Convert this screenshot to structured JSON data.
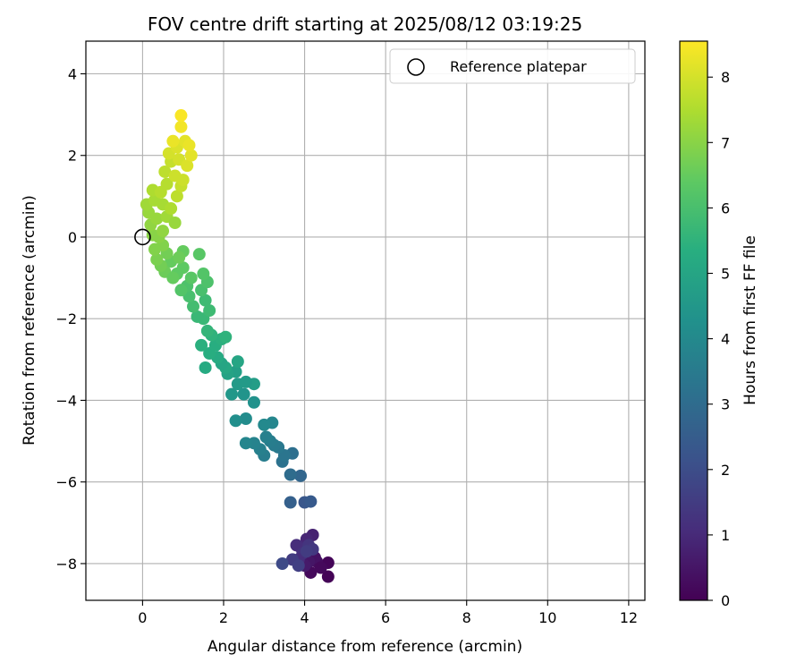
{
  "chart_data": {
    "type": "scatter",
    "title": "FOV centre drift starting at 2025/08/12 03:19:25",
    "xlabel": "Angular distance from reference (arcmin)",
    "ylabel": "Rotation from reference (arcmin)",
    "xlim": [
      -1.4,
      12.4
    ],
    "ylim": [
      -8.9,
      4.8
    ],
    "xticks": [
      0,
      2,
      4,
      6,
      8,
      10,
      12
    ],
    "yticks": [
      -8,
      -6,
      -4,
      -2,
      0,
      2,
      4
    ],
    "grid": true,
    "colormap": "viridis",
    "colorbar": {
      "label": "Hours from first FF file",
      "range": [
        0,
        8.55
      ],
      "ticks": [
        0,
        1,
        2,
        3,
        4,
        5,
        6,
        7,
        8
      ]
    },
    "legend": {
      "location": "top-right",
      "entries": [
        {
          "label": "Reference platepar",
          "marker": "open-circle"
        }
      ]
    },
    "reference": {
      "x": 0,
      "y": 0
    },
    "series": [
      {
        "columns": [
          "x",
          "y",
          "hours"
        ],
        "points": [
          [
            4.58,
            -8.32,
            0.05
          ],
          [
            4.58,
            -7.98,
            0.1
          ],
          [
            4.15,
            -8.22,
            0.2
          ],
          [
            4.3,
            -7.95,
            0.3
          ],
          [
            4.25,
            -7.85,
            0.4
          ],
          [
            4.1,
            -7.95,
            0.5
          ],
          [
            4.0,
            -8.05,
            0.6
          ],
          [
            4.4,
            -8.1,
            0.2
          ],
          [
            4.2,
            -7.3,
            0.8
          ],
          [
            4.05,
            -7.4,
            0.9
          ],
          [
            3.9,
            -7.6,
            1.0
          ],
          [
            3.8,
            -7.55,
            1.1
          ],
          [
            3.95,
            -7.75,
            1.2
          ],
          [
            4.1,
            -7.55,
            1.3
          ],
          [
            3.85,
            -7.9,
            1.1
          ],
          [
            4.2,
            -7.65,
            1.4
          ],
          [
            3.7,
            -7.9,
            1.5
          ],
          [
            3.45,
            -8.0,
            1.9
          ],
          [
            3.85,
            -8.05,
            1.6
          ],
          [
            4.05,
            -7.7,
            1.5
          ],
          [
            4.0,
            -6.5,
            2.3
          ],
          [
            4.15,
            -6.48,
            2.4
          ],
          [
            3.65,
            -6.5,
            2.6
          ],
          [
            3.9,
            -5.85,
            2.8
          ],
          [
            3.65,
            -5.82,
            3.0
          ],
          [
            3.7,
            -5.3,
            3.1
          ],
          [
            3.45,
            -5.5,
            3.2
          ],
          [
            3.5,
            -5.35,
            3.3
          ],
          [
            3.35,
            -5.15,
            3.4
          ],
          [
            3.25,
            -5.1,
            3.5
          ],
          [
            3.15,
            -5.0,
            3.6
          ],
          [
            3.05,
            -4.9,
            3.7
          ],
          [
            3.0,
            -5.35,
            3.6
          ],
          [
            2.9,
            -5.2,
            3.7
          ],
          [
            2.75,
            -5.05,
            3.8
          ],
          [
            2.55,
            -5.05,
            3.9
          ],
          [
            3.2,
            -4.55,
            3.9
          ],
          [
            3.0,
            -4.6,
            4.0
          ],
          [
            2.55,
            -4.45,
            4.1
          ],
          [
            2.3,
            -4.5,
            4.2
          ],
          [
            2.75,
            -4.05,
            4.3
          ],
          [
            2.5,
            -3.85,
            4.4
          ],
          [
            2.2,
            -3.85,
            4.5
          ],
          [
            2.35,
            -3.6,
            4.6
          ],
          [
            2.75,
            -3.6,
            4.7
          ],
          [
            2.55,
            -3.55,
            4.6
          ],
          [
            2.3,
            -3.3,
            4.8
          ],
          [
            2.1,
            -3.35,
            4.9
          ],
          [
            2.35,
            -3.05,
            5.0
          ],
          [
            2.05,
            -3.2,
            5.1
          ],
          [
            1.95,
            -3.1,
            5.0
          ],
          [
            1.85,
            -2.95,
            5.2
          ],
          [
            1.65,
            -2.85,
            5.3
          ],
          [
            1.55,
            -3.2,
            5.2
          ],
          [
            1.8,
            -2.65,
            5.3
          ],
          [
            1.95,
            -2.5,
            5.4
          ],
          [
            2.05,
            -2.45,
            5.5
          ],
          [
            1.7,
            -2.4,
            5.5
          ],
          [
            1.45,
            -2.65,
            5.4
          ],
          [
            1.6,
            -2.3,
            5.6
          ],
          [
            1.5,
            -2.0,
            5.7
          ],
          [
            1.65,
            -1.8,
            5.8
          ],
          [
            1.35,
            -1.95,
            5.7
          ],
          [
            1.55,
            -1.55,
            5.8
          ],
          [
            1.25,
            -1.7,
            5.9
          ],
          [
            1.15,
            -1.45,
            6.0
          ],
          [
            1.45,
            -1.3,
            6.0
          ],
          [
            1.6,
            -1.1,
            6.1
          ],
          [
            1.5,
            -0.9,
            6.2
          ],
          [
            1.1,
            -1.2,
            6.1
          ],
          [
            0.95,
            -1.3,
            6.2
          ],
          [
            1.2,
            -1.0,
            6.3
          ],
          [
            1.4,
            -0.42,
            6.3
          ],
          [
            1.0,
            -0.75,
            6.4
          ],
          [
            0.85,
            -0.9,
            6.4
          ],
          [
            1.0,
            -0.35,
            6.5
          ],
          [
            0.7,
            -0.6,
            6.5
          ],
          [
            0.55,
            -0.85,
            6.6
          ],
          [
            0.75,
            -1.0,
            6.5
          ],
          [
            0.6,
            -0.4,
            6.7
          ],
          [
            0.9,
            -0.5,
            6.6
          ],
          [
            0.45,
            -0.7,
            6.7
          ],
          [
            0.35,
            -0.55,
            6.8
          ],
          [
            0.5,
            -0.2,
            6.9
          ],
          [
            0.3,
            -0.3,
            6.9
          ],
          [
            0.4,
            0.0,
            7.0
          ],
          [
            0.25,
            0.05,
            7.0
          ],
          [
            0.5,
            0.15,
            7.1
          ],
          [
            0.2,
            0.3,
            7.1
          ],
          [
            0.35,
            0.45,
            7.2
          ],
          [
            0.15,
            0.6,
            7.2
          ],
          [
            0.6,
            0.5,
            7.3
          ],
          [
            0.8,
            0.35,
            7.2
          ],
          [
            0.1,
            0.8,
            7.3
          ],
          [
            0.3,
            0.9,
            7.4
          ],
          [
            0.5,
            0.8,
            7.4
          ],
          [
            0.25,
            1.15,
            7.5
          ],
          [
            0.7,
            0.7,
            7.5
          ],
          [
            0.45,
            1.1,
            7.6
          ],
          [
            0.6,
            1.3,
            7.6
          ],
          [
            0.85,
            1.0,
            7.7
          ],
          [
            0.55,
            1.6,
            7.7
          ],
          [
            0.95,
            1.25,
            7.8
          ],
          [
            0.7,
            1.85,
            7.8
          ],
          [
            0.8,
            1.5,
            7.9
          ],
          [
            1.0,
            1.4,
            7.9
          ],
          [
            0.65,
            2.05,
            8.0
          ],
          [
            0.9,
            1.9,
            8.0
          ],
          [
            1.1,
            1.75,
            8.1
          ],
          [
            0.85,
            2.2,
            8.1
          ],
          [
            1.2,
            2.0,
            8.2
          ],
          [
            1.05,
            2.35,
            8.2
          ],
          [
            0.75,
            2.35,
            8.3
          ],
          [
            1.15,
            2.25,
            8.3
          ],
          [
            0.95,
            2.7,
            8.4
          ],
          [
            0.95,
            2.98,
            8.5
          ]
        ]
      }
    ]
  }
}
